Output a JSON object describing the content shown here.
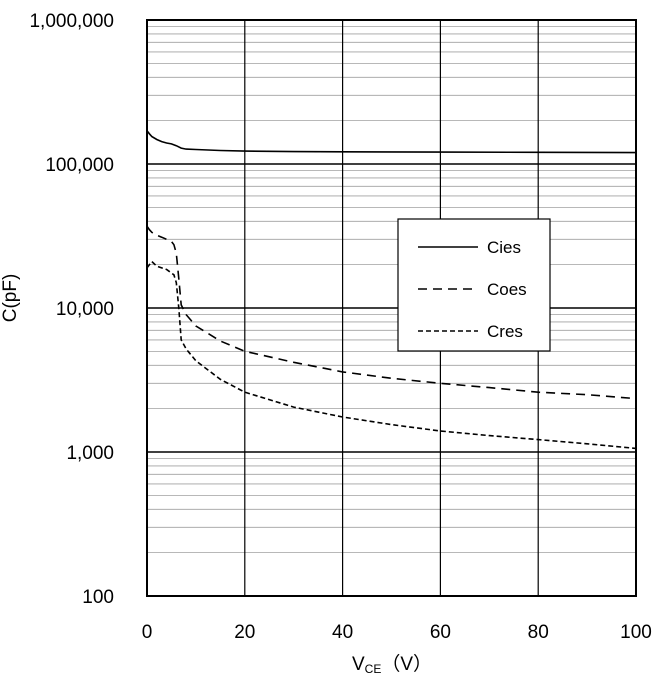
{
  "chart_data": {
    "type": "line",
    "xlabel": {
      "main": "V",
      "sub": "CE",
      "unit": "（V）"
    },
    "ylabel": "C(pF)",
    "xlim": [
      0,
      100
    ],
    "ylim": [
      100,
      1000000
    ],
    "yscale": "log",
    "grid": true,
    "legend_position": "right-middle",
    "x_ticks": [
      "0",
      "20",
      "40",
      "60",
      "80",
      "100"
    ],
    "y_ticks": [
      "100",
      "1,000",
      "10,000",
      "100,000",
      "1,000,000"
    ],
    "series": [
      {
        "name": "Cies",
        "style": "solid",
        "points": [
          [
            0,
            170000
          ],
          [
            0.5,
            162000
          ],
          [
            1,
            155000
          ],
          [
            2,
            148000
          ],
          [
            3,
            143000
          ],
          [
            4,
            140000
          ],
          [
            5,
            138000
          ],
          [
            6,
            134000
          ],
          [
            7,
            129000
          ],
          [
            8,
            127000
          ],
          [
            10,
            126000
          ],
          [
            15,
            124000
          ],
          [
            20,
            123000
          ],
          [
            30,
            122000
          ],
          [
            40,
            121500
          ],
          [
            60,
            121000
          ],
          [
            80,
            120500
          ],
          [
            100,
            120000
          ]
        ]
      },
      {
        "name": "Coes",
        "style": "dashed",
        "points": [
          [
            0,
            37000
          ],
          [
            0.5,
            35000
          ],
          [
            1,
            33500
          ],
          [
            2,
            32000
          ],
          [
            3,
            31000
          ],
          [
            4,
            30000
          ],
          [
            5,
            29000
          ],
          [
            5.5,
            27500
          ],
          [
            6,
            24000
          ],
          [
            6.5,
            16000
          ],
          [
            7,
            10500
          ],
          [
            8,
            9000
          ],
          [
            10,
            7500
          ],
          [
            15,
            5900
          ],
          [
            20,
            5000
          ],
          [
            30,
            4200
          ],
          [
            40,
            3600
          ],
          [
            50,
            3250
          ],
          [
            60,
            3000
          ],
          [
            70,
            2800
          ],
          [
            80,
            2600
          ],
          [
            90,
            2500
          ],
          [
            100,
            2350
          ]
        ]
      },
      {
        "name": "Cres",
        "style": "dotted",
        "points": [
          [
            0,
            19000
          ],
          [
            0.5,
            20000
          ],
          [
            1,
            21000
          ],
          [
            2,
            19500
          ],
          [
            3,
            19000
          ],
          [
            4,
            18500
          ],
          [
            5,
            17500
          ],
          [
            5.5,
            17000
          ],
          [
            6,
            15000
          ],
          [
            6.5,
            10000
          ],
          [
            7,
            6000
          ],
          [
            8,
            5200
          ],
          [
            10,
            4300
          ],
          [
            15,
            3200
          ],
          [
            20,
            2600
          ],
          [
            30,
            2050
          ],
          [
            40,
            1750
          ],
          [
            50,
            1550
          ],
          [
            60,
            1400
          ],
          [
            70,
            1300
          ],
          [
            80,
            1220
          ],
          [
            90,
            1140
          ],
          [
            100,
            1060
          ]
        ]
      }
    ]
  }
}
